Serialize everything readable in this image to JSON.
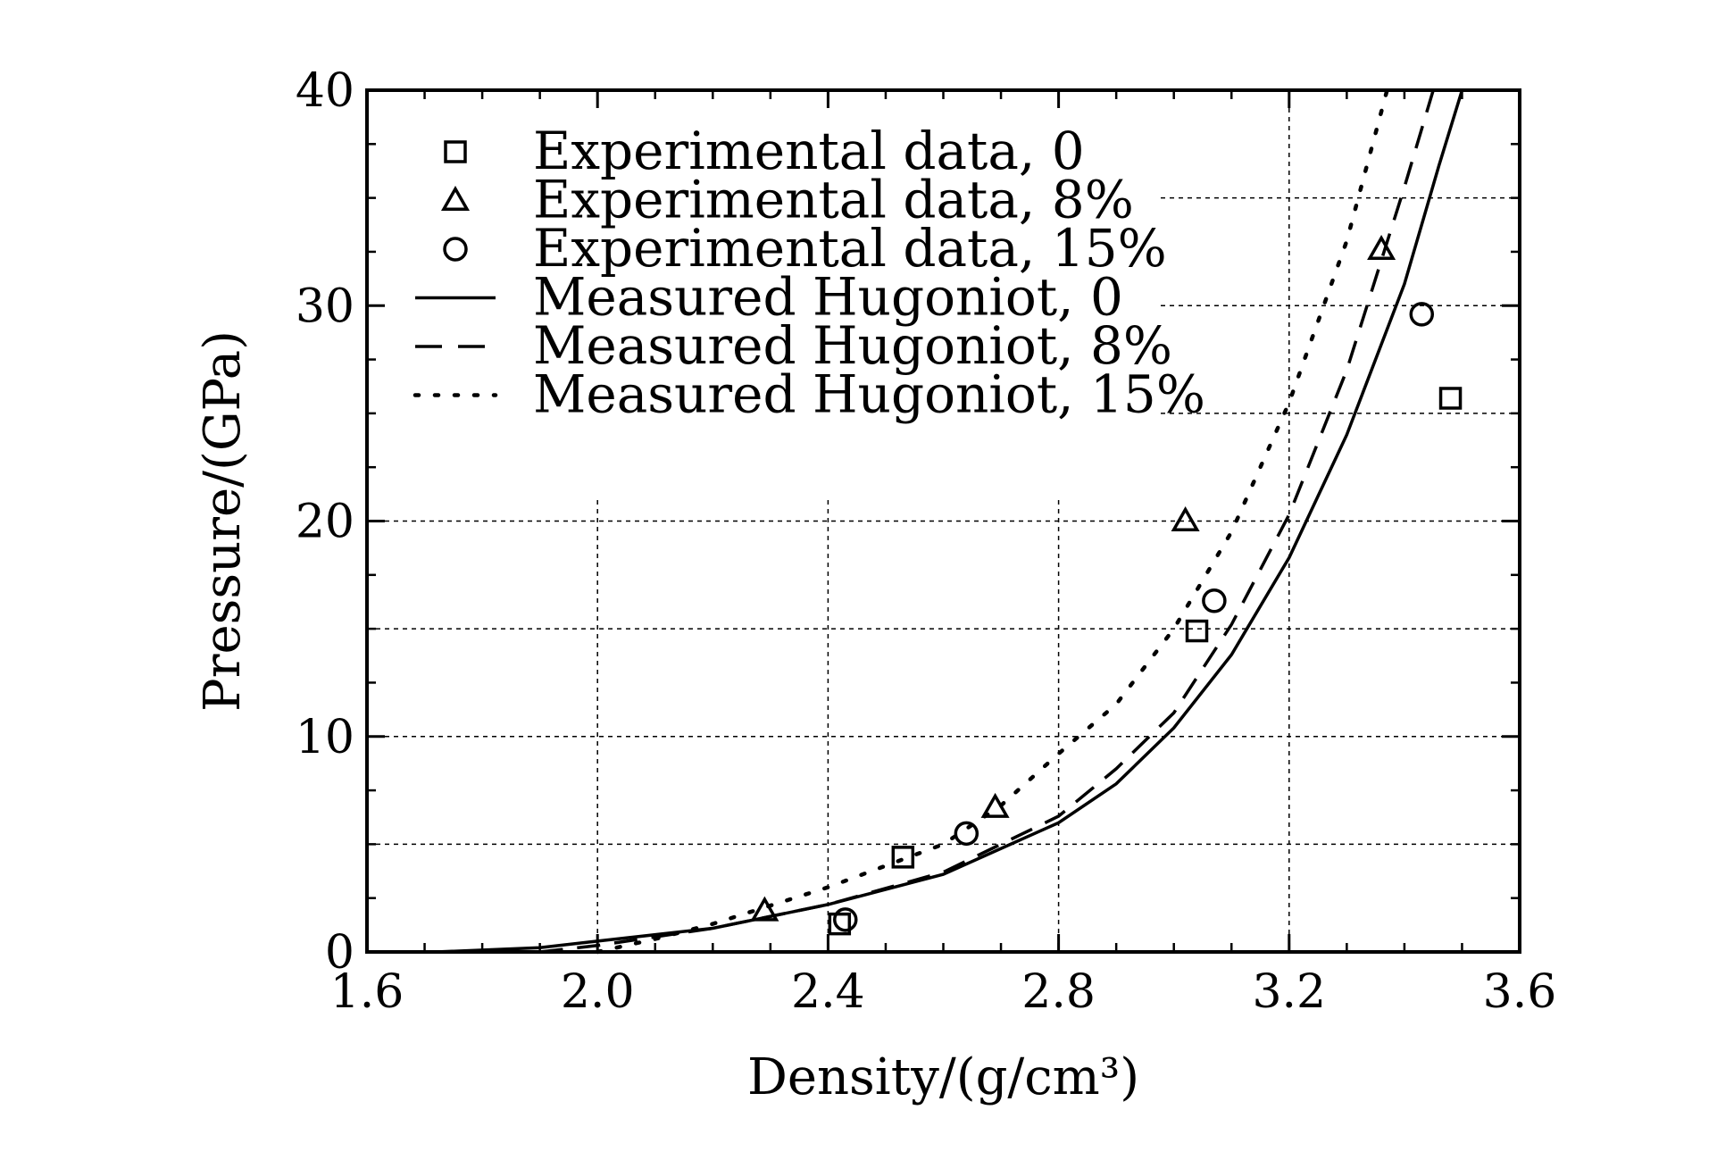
{
  "chart_data": {
    "type": "scatter",
    "title": "",
    "xlabel": "Density/(g/cm³)",
    "ylabel": "Pressure/(GPa)",
    "xlim": [
      1.6,
      3.6
    ],
    "ylim": [
      0,
      40
    ],
    "xticks": [
      "1.6",
      "2.0",
      "2.4",
      "2.8",
      "3.2",
      "3.6"
    ],
    "yticks": [
      "0",
      "10",
      "20",
      "30",
      "40"
    ],
    "grid": true,
    "legend": "top-left",
    "series": [
      {
        "name": "Experimental data, 0",
        "kind": "scatter",
        "marker": "square",
        "points": [
          [
            2.42,
            1.3
          ],
          [
            2.53,
            4.4
          ],
          [
            3.04,
            14.9
          ],
          [
            3.48,
            25.7
          ]
        ]
      },
      {
        "name": "Experimental data, 8%",
        "kind": "scatter",
        "marker": "triangle",
        "points": [
          [
            2.29,
            1.9
          ],
          [
            2.69,
            6.7
          ],
          [
            3.02,
            20.0
          ],
          [
            3.36,
            32.6
          ]
        ]
      },
      {
        "name": "Experimental data, 15%",
        "kind": "scatter",
        "marker": "circle",
        "points": [
          [
            2.43,
            1.5
          ],
          [
            2.64,
            5.5
          ],
          [
            3.07,
            16.3
          ],
          [
            3.43,
            29.6
          ]
        ]
      },
      {
        "name": "Measured Hugoniot, 0",
        "kind": "line",
        "dash": "solid",
        "points": [
          [
            1.72,
            0.0
          ],
          [
            1.9,
            0.2
          ],
          [
            2.0,
            0.5
          ],
          [
            2.2,
            1.1
          ],
          [
            2.4,
            2.2
          ],
          [
            2.6,
            3.6
          ],
          [
            2.8,
            6.0
          ],
          [
            2.9,
            7.8
          ],
          [
            3.0,
            10.4
          ],
          [
            3.1,
            13.8
          ],
          [
            3.2,
            18.3
          ],
          [
            3.3,
            24.0
          ],
          [
            3.4,
            31.0
          ],
          [
            3.46,
            36.5
          ],
          [
            3.5,
            40.0
          ]
        ]
      },
      {
        "name": "Measured Hugoniot, 8%",
        "kind": "line",
        "dash": "dashed",
        "points": [
          [
            1.9,
            0.0
          ],
          [
            2.0,
            0.3
          ],
          [
            2.2,
            1.1
          ],
          [
            2.4,
            2.2
          ],
          [
            2.6,
            3.7
          ],
          [
            2.8,
            6.3
          ],
          [
            2.9,
            8.5
          ],
          [
            3.0,
            11.1
          ],
          [
            3.1,
            15.2
          ],
          [
            3.2,
            20.3
          ],
          [
            3.3,
            27.0
          ],
          [
            3.4,
            35.5
          ],
          [
            3.45,
            40.0
          ]
        ]
      },
      {
        "name": "Measured Hugoniot, 15%",
        "kind": "line",
        "dash": "dotted",
        "points": [
          [
            2.0,
            0.0
          ],
          [
            2.1,
            0.6
          ],
          [
            2.2,
            1.3
          ],
          [
            2.4,
            3.0
          ],
          [
            2.6,
            5.0
          ],
          [
            2.7,
            6.8
          ],
          [
            2.8,
            9.2
          ],
          [
            2.9,
            11.5
          ],
          [
            3.0,
            15.0
          ],
          [
            3.1,
            19.5
          ],
          [
            3.2,
            25.5
          ],
          [
            3.3,
            33.0
          ],
          [
            3.37,
            40.0
          ]
        ]
      }
    ],
    "legend_entries": [
      "Experimental data, 0",
      "Experimental data, 8%",
      "Experimental data, 15%",
      "Measured Hugoniot, 0",
      "Measured Hugoniot, 8%",
      "Measured Hugoniot, 15%"
    ]
  }
}
